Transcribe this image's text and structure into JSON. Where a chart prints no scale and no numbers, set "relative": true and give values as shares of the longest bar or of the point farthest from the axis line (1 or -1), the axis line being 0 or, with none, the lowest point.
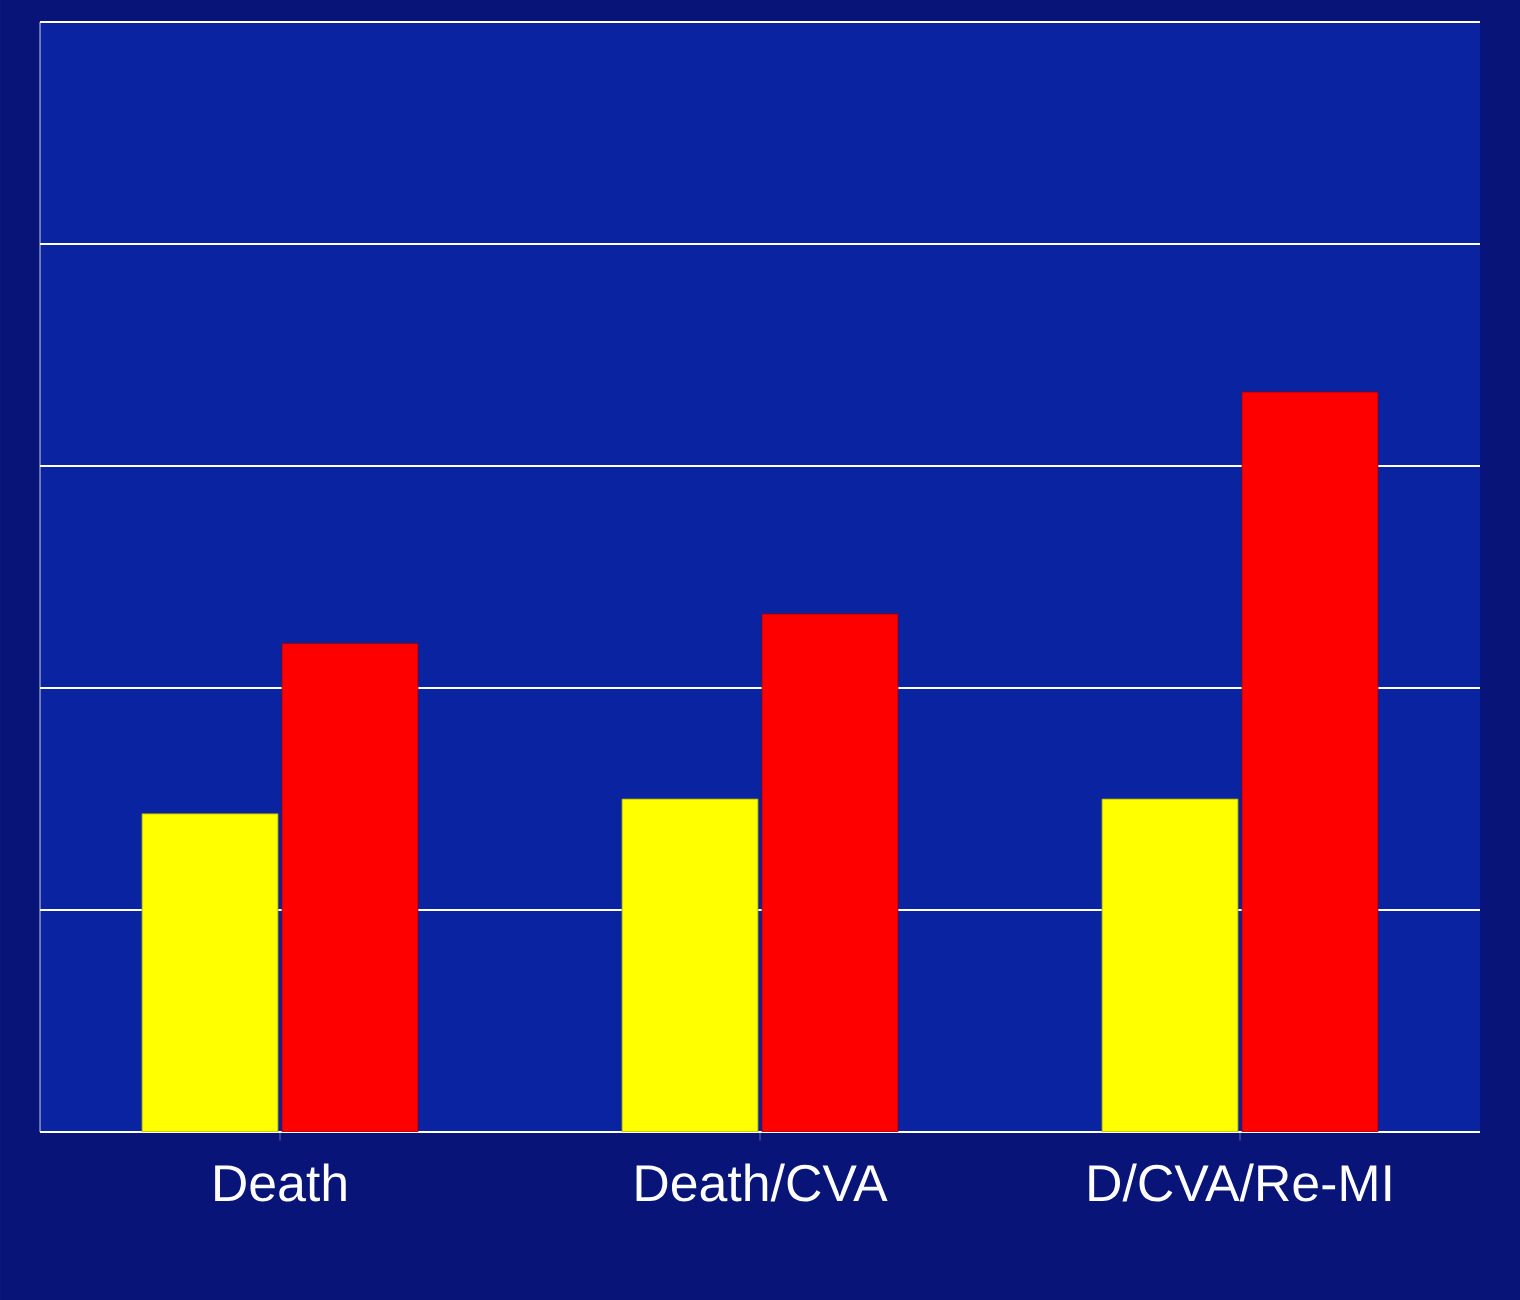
{
  "chart_data": {
    "type": "bar",
    "relative": true,
    "grid": "y",
    "categories": [
      "Death",
      "Death/CVA",
      "D/CVA/Re-MI"
    ],
    "series": [
      {
        "color": "#ffff00",
        "values": [
          0.43,
          0.45,
          0.45
        ]
      },
      {
        "color": "#ff0000",
        "values": [
          0.66,
          0.7,
          1
        ]
      }
    ]
  }
}
